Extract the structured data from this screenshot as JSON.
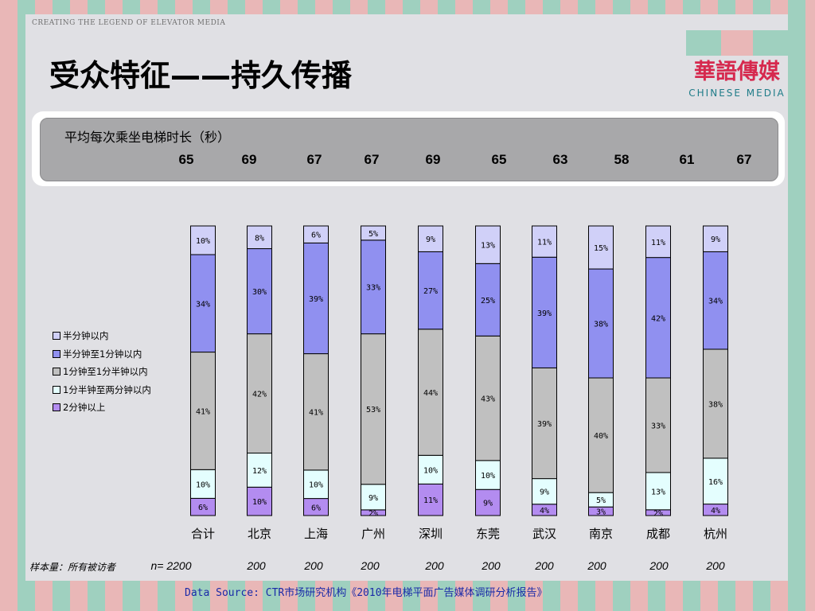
{
  "slide": {
    "tagline": "CREATING THE LEGEND OF ELEVATOR MEDIA",
    "title": "受众特征——持久传播",
    "logo": {
      "cn": "華語傳媒",
      "en": "CHINESE MEDIA"
    }
  },
  "panel": {
    "title": "平均每次乘坐电梯时长（秒）",
    "values": [
      "65",
      "69",
      "67",
      "67",
      "69",
      "65",
      "63",
      "58",
      "61",
      "67"
    ]
  },
  "sample": {
    "label": "样本量：所有被访者",
    "values": [
      "n= 2200",
      "200",
      "200",
      "200",
      "200",
      "200",
      "200",
      "200",
      "200",
      "200"
    ]
  },
  "source": "Data Source: CTR市场研究机构《2010年电梯平面广告媒体调研分析报告》",
  "chart_data": {
    "type": "bar",
    "stacked": true,
    "percent": true,
    "categories": [
      "合计",
      "北京",
      "上海",
      "广州",
      "深圳",
      "东莞",
      "武汉",
      "南京",
      "成都",
      "杭州"
    ],
    "series": [
      {
        "name": "2分钟以上",
        "color": "#b38cf0",
        "values": [
          6,
          10,
          6,
          2,
          11,
          9,
          4,
          3,
          2,
          4
        ]
      },
      {
        "name": "1分半钟至两分钟以内",
        "color": "#e4fefe",
        "values": [
          10,
          12,
          10,
          9,
          10,
          10,
          9,
          5,
          13,
          16
        ]
      },
      {
        "name": "1分钟至1分半钟以内",
        "color": "#c0c0c0",
        "values": [
          41,
          42,
          41,
          53,
          44,
          43,
          39,
          40,
          33,
          38
        ]
      },
      {
        "name": "半分钟至1分钟以内",
        "color": "#9090f0",
        "values": [
          34,
          30,
          39,
          33,
          27,
          25,
          39,
          38,
          42,
          34
        ]
      },
      {
        "name": "半分钟以内",
        "color": "#d0d0f8",
        "values": [
          10,
          8,
          6,
          5,
          9,
          13,
          11,
          15,
          11,
          9
        ]
      }
    ],
    "data_labels": true,
    "ylim": [
      0,
      100
    ],
    "legend_position": "left",
    "legend_order": [
      "半分钟以内",
      "半分钟至1分钟以内",
      "1分钟至1分半钟以内",
      "1分半钟至两分钟以内",
      "2分钟以上"
    ]
  }
}
